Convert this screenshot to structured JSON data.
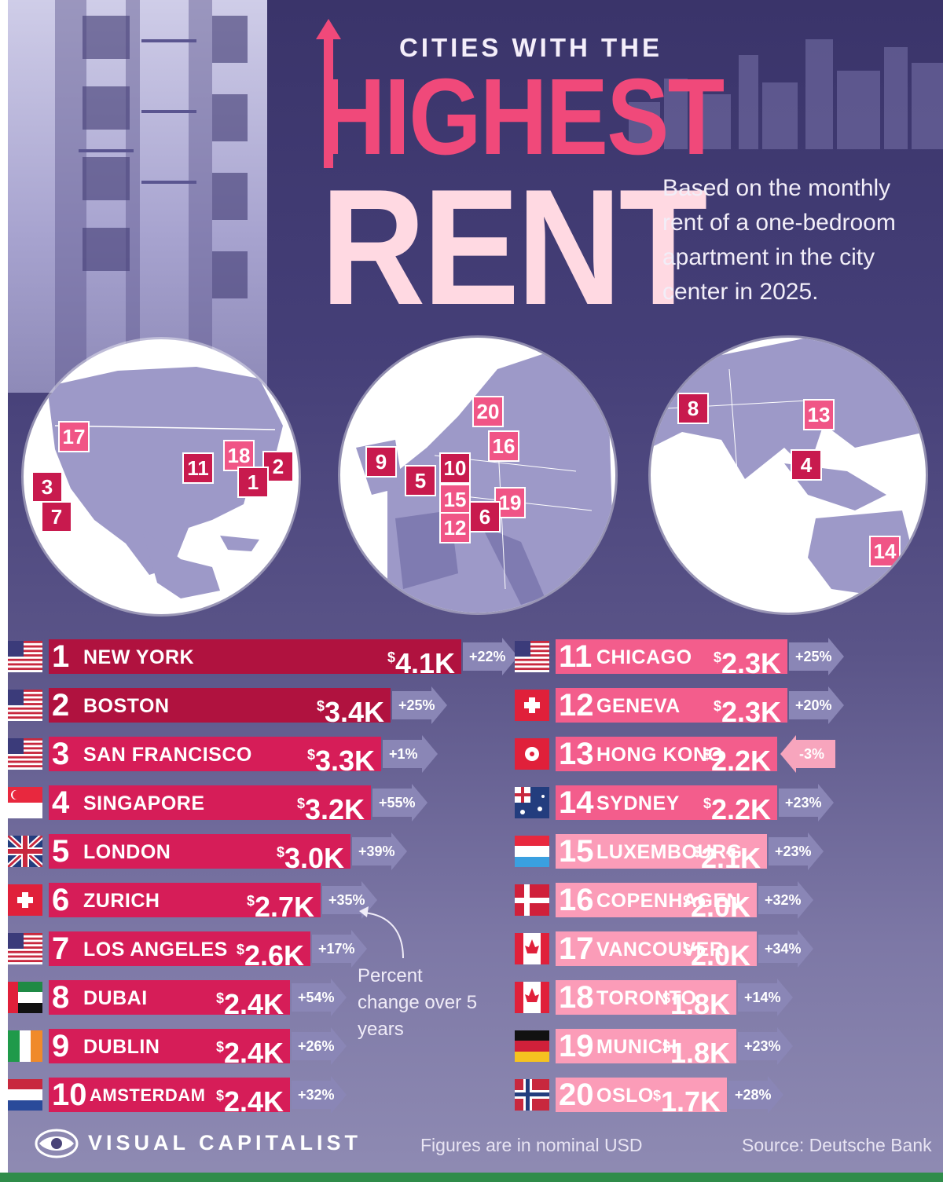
{
  "header": {
    "kicker": "CITIES WITH THE",
    "title_line1": "HIGHEST",
    "title_line2": "RENT",
    "description": "Based on the monthly rent of a one-bedroom apartment in the city center in 2025."
  },
  "maps": {
    "north_america": [
      "17",
      "18",
      "2",
      "11",
      "1",
      "3",
      "7"
    ],
    "europe": [
      "20",
      "16",
      "9",
      "10",
      "5",
      "15",
      "19",
      "6",
      "12"
    ],
    "asia_pacific": [
      "8",
      "13",
      "4",
      "14"
    ]
  },
  "note": "Percent change over 5 years",
  "footer": {
    "brand": "VISUAL CAPITALIST",
    "units_note": "Figures are in nominal USD",
    "source": "Source: Deutsche Bank"
  },
  "colors": {
    "bar_dark": "#b0123f",
    "bar_mid": "#d61d58",
    "bar_light": "#f35d8c",
    "bar_pale": "#fb9cb8",
    "arrow_up": "#8a86b6",
    "arrow_down": "#f7a5bd"
  },
  "chart_data": {
    "type": "bar",
    "ylabel": "",
    "value_unit": "USD per month",
    "categories": [
      "NEW YORK",
      "BOSTON",
      "SAN FRANCISCO",
      "SINGAPORE",
      "LONDON",
      "ZURICH",
      "LOS ANGELES",
      "DUBAI",
      "DUBLIN",
      "AMSTERDAM",
      "CHICAGO",
      "GENEVA",
      "HONG KONG",
      "SYDNEY",
      "LUXEMBOURG",
      "COPENHAGEN",
      "VANCOUVER",
      "TORONTO",
      "MUNICH",
      "OSLO"
    ],
    "series": [
      {
        "values": [
          4100,
          3400,
          3300,
          3200,
          3000,
          2700,
          2600,
          2400,
          2400,
          2400,
          2300,
          2300,
          2200,
          2200,
          2100,
          2000,
          2000,
          1800,
          1800,
          1700
        ]
      }
    ],
    "rows": [
      {
        "rank": "1",
        "city": "NEW YORK",
        "value": "4.1K",
        "change": "+22%",
        "flag": "us"
      },
      {
        "rank": "2",
        "city": "BOSTON",
        "value": "3.4K",
        "change": "+25%",
        "flag": "us"
      },
      {
        "rank": "3",
        "city": "SAN FRANCISCO",
        "value": "3.3K",
        "change": "+1%",
        "flag": "us"
      },
      {
        "rank": "4",
        "city": "SINGAPORE",
        "value": "3.2K",
        "change": "+55%",
        "flag": "sg"
      },
      {
        "rank": "5",
        "city": "LONDON",
        "value": "3.0K",
        "change": "+39%",
        "flag": "uk"
      },
      {
        "rank": "6",
        "city": "ZURICH",
        "value": "2.7K",
        "change": "+35%",
        "flag": "ch"
      },
      {
        "rank": "7",
        "city": "LOS ANGELES",
        "value": "2.6K",
        "change": "+17%",
        "flag": "us"
      },
      {
        "rank": "8",
        "city": "DUBAI",
        "value": "2.4K",
        "change": "+54%",
        "flag": "ae"
      },
      {
        "rank": "9",
        "city": "DUBLIN",
        "value": "2.4K",
        "change": "+26%",
        "flag": "ie"
      },
      {
        "rank": "10",
        "city": "AMSTERDAM",
        "value": "2.4K",
        "change": "+32%",
        "flag": "nl"
      },
      {
        "rank": "11",
        "city": "CHICAGO",
        "value": "2.3K",
        "change": "+25%",
        "flag": "us"
      },
      {
        "rank": "12",
        "city": "GENEVA",
        "value": "2.3K",
        "change": "+20%",
        "flag": "ch"
      },
      {
        "rank": "13",
        "city": "HONG KONG",
        "value": "2.2K",
        "change": "-3%",
        "flag": "hk"
      },
      {
        "rank": "14",
        "city": "SYDNEY",
        "value": "2.2K",
        "change": "+23%",
        "flag": "au"
      },
      {
        "rank": "15",
        "city": "LUXEMBOURG",
        "value": "2.1K",
        "change": "+23%",
        "flag": "lu"
      },
      {
        "rank": "16",
        "city": "COPENHAGEN",
        "value": "2.0K",
        "change": "+32%",
        "flag": "dk"
      },
      {
        "rank": "17",
        "city": "VANCOUVER",
        "value": "2.0K",
        "change": "+34%",
        "flag": "ca"
      },
      {
        "rank": "18",
        "city": "TORONTO",
        "value": "1.8K",
        "change": "+14%",
        "flag": "ca"
      },
      {
        "rank": "19",
        "city": "MUNICH",
        "value": "1.8K",
        "change": "+23%",
        "flag": "de"
      },
      {
        "rank": "20",
        "city": "OSLO",
        "value": "1.7K",
        "change": "+28%",
        "flag": "no"
      }
    ]
  }
}
